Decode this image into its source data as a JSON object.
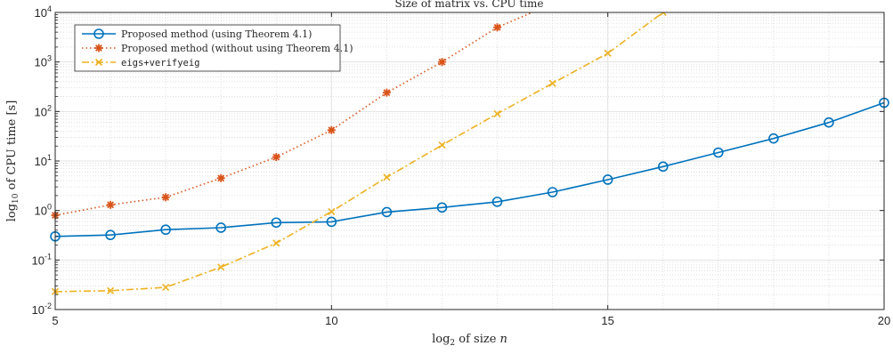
{
  "chart_data": {
    "type": "line",
    "title": "Size of matrix vs. CPU time",
    "xlabel": "log",
    "xlabel_sub": "2",
    "xlabel_rest": " of size ",
    "xlabel_var": "n",
    "ylabel": "log",
    "ylabel_sub": "10",
    "ylabel_rest": " of CPU time [s]",
    "xlim": [
      5,
      20
    ],
    "ylim": [
      0.01,
      10000
    ],
    "yscale": "log",
    "grid": true,
    "minor_grid": true,
    "legend_position": "top-left",
    "x_ticks": [
      "5",
      "10",
      "15",
      "20"
    ],
    "y_ticks": [
      {
        "base": "10",
        "exp": "-2"
      },
      {
        "base": "10",
        "exp": "-1"
      },
      {
        "base": "10",
        "exp": "0"
      },
      {
        "base": "10",
        "exp": "1"
      },
      {
        "base": "10",
        "exp": "2"
      },
      {
        "base": "10",
        "exp": "3"
      },
      {
        "base": "10",
        "exp": "4"
      }
    ],
    "series": [
      {
        "name": "Proposed method (using Theorem 4.1)",
        "color": "#0072BD",
        "line_style": "solid",
        "marker": "circle",
        "font": "serif",
        "x": [
          5,
          6,
          7,
          8,
          9,
          10,
          11,
          12,
          13,
          14,
          15,
          16,
          17,
          18,
          19,
          20
        ],
        "y": [
          0.3,
          0.32,
          0.41,
          0.45,
          0.57,
          0.59,
          0.93,
          1.15,
          1.5,
          2.35,
          4.2,
          7.7,
          14.8,
          28.5,
          60,
          150
        ]
      },
      {
        "name": "Proposed method (without using Theorem 4.1)",
        "color": "#D95319",
        "line_style": "dotted",
        "marker": "star",
        "font": "serif",
        "x": [
          5,
          6,
          7,
          8,
          9,
          10,
          11,
          12,
          13
        ],
        "y": [
          0.8,
          1.3,
          1.85,
          4.5,
          12,
          42,
          240,
          1000,
          5000
        ]
      },
      {
        "name": "eigs+verifyeig",
        "color": "#EDB120",
        "line_style": "dashdot",
        "marker": "x",
        "font": "mono",
        "x": [
          5,
          6,
          7,
          8,
          9,
          10,
          11,
          12,
          13,
          14,
          15,
          16
        ],
        "y": [
          0.023,
          0.024,
          0.028,
          0.072,
          0.22,
          0.95,
          4.7,
          21,
          90,
          370,
          1500,
          10000
        ]
      }
    ]
  }
}
